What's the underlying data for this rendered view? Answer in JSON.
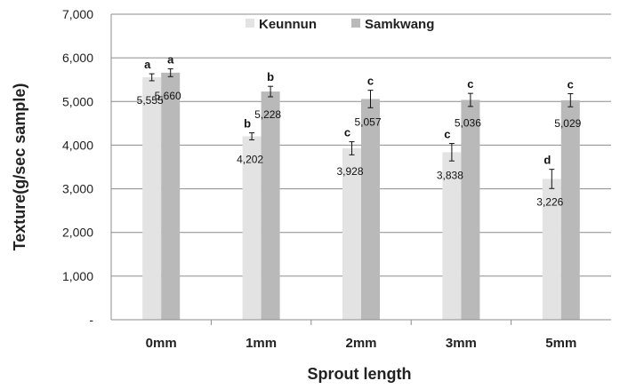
{
  "chart_data": {
    "type": "bar",
    "ylabel": "Texture(g/sec sample)",
    "xlabel": "Sprout length",
    "categories": [
      "0mm",
      "1mm",
      "2mm",
      "3mm",
      "5mm"
    ],
    "ylim": [
      0,
      7000
    ],
    "yticks": [
      0,
      1000,
      2000,
      3000,
      4000,
      5000,
      6000,
      7000
    ],
    "ytick_labels": [
      "-",
      "1,000",
      "2,000",
      "3,000",
      "4,000",
      "5,000",
      "6,000",
      "7,000"
    ],
    "grid": true,
    "legend_position": "top",
    "series": [
      {
        "name": "Keunnun",
        "color": "#e3e3e3",
        "values": [
          5555,
          4202,
          3928,
          3838,
          3226
        ],
        "value_labels": [
          "5,555",
          "4,202",
          "3,928",
          "3,838",
          "3,226"
        ],
        "errors": [
          80,
          80,
          150,
          200,
          220
        ],
        "letters": [
          "a",
          "b",
          "c",
          "c",
          "d"
        ]
      },
      {
        "name": "Samkwang",
        "color": "#b9b9b9",
        "values": [
          5660,
          5228,
          5057,
          5036,
          5029
        ],
        "value_labels": [
          "5,660",
          "5,228",
          "5,057",
          "5,036",
          "5,029"
        ],
        "errors": [
          90,
          120,
          200,
          150,
          150
        ],
        "letters": [
          "a",
          "b",
          "c",
          "c",
          "c"
        ]
      }
    ]
  }
}
